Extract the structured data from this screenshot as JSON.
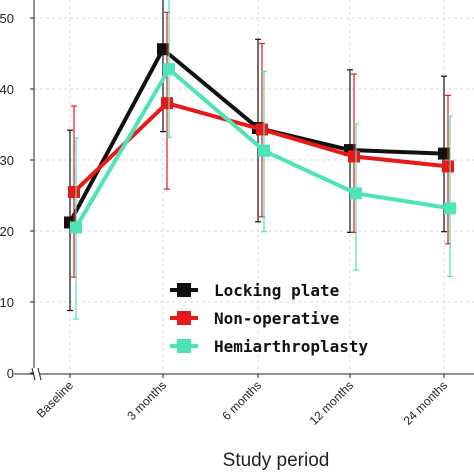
{
  "chart_data": {
    "type": "line",
    "title": "",
    "xlabel": "Study period",
    "ylabel": "",
    "categories": [
      "Baseline",
      "3 months",
      "6 months",
      "12 months",
      "24 months"
    ],
    "y_ticks": [
      0,
      10,
      20,
      30,
      40,
      50
    ],
    "y_tick_labels": [
      "0",
      "10",
      "20",
      "30",
      "40",
      "50"
    ],
    "ylim": [
      0,
      51
    ],
    "grid": true,
    "legend_position": "bottom-right",
    "series": [
      {
        "name": "Locking plate",
        "color": "#111111",
        "values": [
          21.2,
          45.6,
          34.5,
          31.4,
          30.9
        ],
        "err_low": [
          12.4,
          11.6,
          13.2,
          11.6,
          11.0
        ],
        "err_high": [
          13.0,
          12.3,
          12.5,
          11.3,
          10.9
        ]
      },
      {
        "name": "Non-operative",
        "color": "#e8191b",
        "values": [
          25.5,
          38.0,
          34.3,
          30.5,
          29.1
        ],
        "err_low": [
          12.0,
          12.1,
          12.3,
          10.7,
          10.9
        ],
        "err_high": [
          12.1,
          12.8,
          12.1,
          11.6,
          10.0
        ]
      },
      {
        "name": "Hemiarthroplasty",
        "color": "#4ee4b8",
        "values": [
          20.5,
          42.8,
          31.3,
          25.3,
          23.2
        ],
        "err_low": [
          12.9,
          9.6,
          11.4,
          10.8,
          9.6
        ],
        "err_high": [
          12.6,
          12.8,
          11.2,
          9.8,
          13.0
        ]
      }
    ]
  }
}
